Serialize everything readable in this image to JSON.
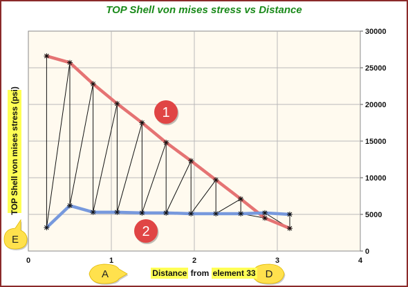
{
  "chart_data": {
    "type": "line",
    "title": "TOP Shell von mises stress  vs Distance",
    "xlabel": {
      "part1": "Distance",
      "part2": " from ",
      "part3": "element 33"
    },
    "ylabel": "TOP Shell von mises stress (psi)",
    "xlim": [
      0,
      4
    ],
    "ylim": [
      0,
      30000
    ],
    "xticks": [
      "0",
      "1",
      "2",
      "3",
      "4"
    ],
    "yticks": [
      "0",
      "5000",
      "10000",
      "15000",
      "20000",
      "25000",
      "30000"
    ],
    "y_axis_side": "right",
    "grid": true,
    "series": [
      {
        "color": "#e57373",
        "x": [
          0.22,
          0.5,
          0.78,
          1.07,
          1.37,
          1.66,
          1.96,
          2.26,
          2.56,
          2.85,
          3.15
        ],
        "y": [
          26600,
          25700,
          22800,
          20100,
          17500,
          14800,
          12300,
          9700,
          7100,
          4500,
          3100
        ]
      },
      {
        "color": "#7799dd",
        "x": [
          0.22,
          0.5,
          0.78,
          1.07,
          1.37,
          1.66,
          1.96,
          2.26,
          2.56,
          2.85,
          3.15
        ],
        "y": [
          3200,
          6200,
          5300,
          5300,
          5200,
          5200,
          5100,
          5100,
          5100,
          5200,
          5000
        ]
      }
    ],
    "zigzag_color": "#111111",
    "callouts": {
      "numbers": [
        "1",
        "2"
      ],
      "letters": [
        "E",
        "A",
        "D"
      ],
      "number_color": "#e04545",
      "letter_color": "#ffe14d"
    }
  }
}
